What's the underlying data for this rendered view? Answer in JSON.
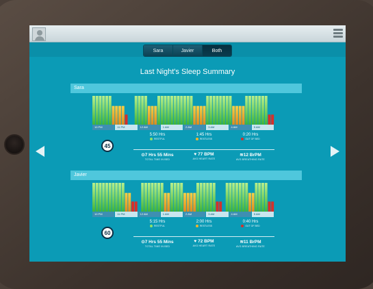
{
  "header": {
    "menu_icon": "hamburger-menu-icon",
    "avatar_icon": "user-avatar-icon"
  },
  "tabs": [
    {
      "label": "Sara",
      "active": false
    },
    {
      "label": "Javier",
      "active": false
    },
    {
      "label": "Both",
      "active": true
    }
  ],
  "title": "Last Night's Sleep Summary",
  "navigation": {
    "prev_icon": "arrow-left-icon",
    "next_icon": "arrow-right-icon"
  },
  "colors": {
    "restful": "#8ee06a",
    "restless": "#f0b52a",
    "out_of_bed": "#d6302a",
    "screen": "#0b9bb6"
  },
  "time_ticks": [
    "10 PM",
    "11 PM",
    "12 AM",
    "1 AM",
    "2 AM",
    "3 AM",
    "4 AM",
    "5 AM"
  ],
  "people": [
    {
      "name": "Sara",
      "score": "45",
      "restful": {
        "value": "5:50 Hrs",
        "label": "RESTFUL"
      },
      "restless": {
        "value": "1:45 Hrs",
        "label": "RESTLESS"
      },
      "out_of_bed": {
        "value": "0:20 Hrs",
        "label": "OUT OF BED"
      },
      "time_in_bed": {
        "value": "7 Hrs 55 Mins",
        "label": "TOTAL TIME IN BED"
      },
      "heart_rate": {
        "value": "77 BPM",
        "label": "AVG HEART RATE"
      },
      "breathing_rate": {
        "value": "12 BrPM",
        "label": "AVG BREATHING RATE"
      },
      "sleep_levels": [
        3,
        3,
        3,
        3,
        3,
        3,
        2,
        2,
        2,
        2,
        1,
        0,
        0,
        3,
        3,
        3,
        3,
        2,
        2,
        2,
        3,
        3,
        3,
        3,
        3,
        3,
        3,
        3,
        3,
        3,
        3,
        2,
        2,
        2,
        2,
        3,
        3,
        3,
        3,
        3,
        3,
        3,
        3,
        2,
        2,
        2,
        2,
        3,
        3,
        3,
        3,
        3,
        3,
        3,
        1,
        1
      ]
    },
    {
      "name": "Javier",
      "score": "60",
      "restful": {
        "value": "5:15 Hrs",
        "label": "RESTFUL"
      },
      "restless": {
        "value": "2:00 Hrs",
        "label": "RESTLESS"
      },
      "out_of_bed": {
        "value": "0:40 Hrs",
        "label": "OUT OF BED"
      },
      "time_in_bed": {
        "value": "7 Hrs 55 Mins",
        "label": "TOTAL TIME IN BED"
      },
      "heart_rate": {
        "value": "72 BPM",
        "label": "AVG HEART RATE"
      },
      "breathing_rate": {
        "value": "11 BrPM",
        "label": "AVG BREATHING RATE"
      },
      "sleep_levels": [
        3,
        3,
        3,
        3,
        3,
        3,
        3,
        3,
        3,
        3,
        2,
        2,
        1,
        1,
        0,
        3,
        3,
        3,
        3,
        3,
        3,
        3,
        2,
        2,
        3,
        3,
        3,
        3,
        2,
        2,
        2,
        2,
        3,
        3,
        3,
        3,
        3,
        3,
        1,
        1,
        0,
        3,
        3,
        3,
        3,
        3,
        3,
        3,
        2,
        2,
        3,
        3,
        3,
        3,
        1,
        1
      ]
    }
  ]
}
